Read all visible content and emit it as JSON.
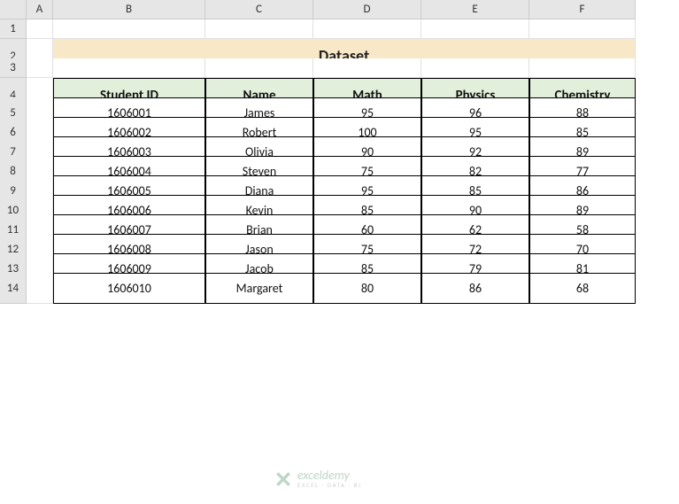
{
  "columns": [
    "A",
    "B",
    "C",
    "D",
    "E",
    "F"
  ],
  "rows": [
    "1",
    "2",
    "3",
    "4",
    "5",
    "6",
    "7",
    "8",
    "9",
    "10",
    "11",
    "12",
    "13",
    "14"
  ],
  "title": "Dataset",
  "headers": [
    "Student ID",
    "Name",
    "Math",
    "Physics",
    "Chemistry"
  ],
  "data": [
    [
      "1606001",
      "James",
      "95",
      "96",
      "88"
    ],
    [
      "1606002",
      "Robert",
      "100",
      "95",
      "85"
    ],
    [
      "1606003",
      "Olivia",
      "90",
      "92",
      "89"
    ],
    [
      "1606004",
      "Steven",
      "75",
      "82",
      "77"
    ],
    [
      "1606005",
      "Diana",
      "95",
      "85",
      "86"
    ],
    [
      "1606006",
      "Kevin",
      "85",
      "90",
      "89"
    ],
    [
      "1606007",
      "Brian",
      "60",
      "62",
      "58"
    ],
    [
      "1606008",
      "Jason",
      "75",
      "72",
      "70"
    ],
    [
      "1606009",
      "Jacob",
      "85",
      "79",
      "81"
    ],
    [
      "1606010",
      "Margaret",
      "80",
      "86",
      "68"
    ]
  ],
  "colors": {
    "title_bg": "#f9e8c8",
    "title_underline": "#2f5597",
    "header_bg": "#e2efda",
    "data_border": "#000000",
    "col_header_bg": "#e6e6e6",
    "grid_line": "#e0e0e0"
  },
  "watermark": {
    "name": "exceldemy",
    "tagline": "EXCEL · DATA · BI"
  }
}
